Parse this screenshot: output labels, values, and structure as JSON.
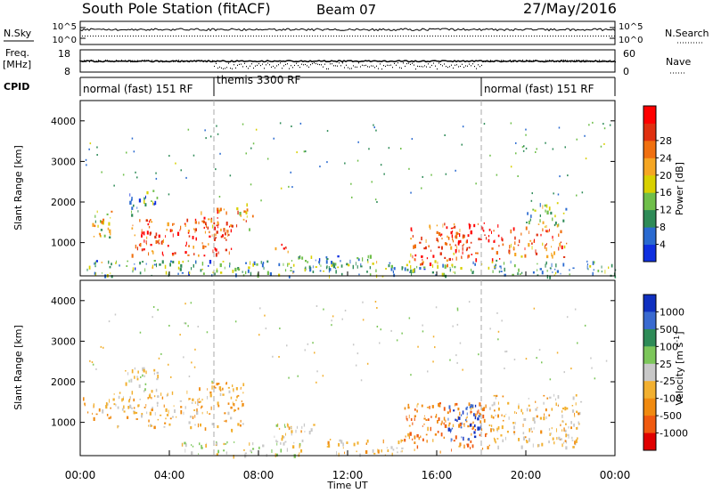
{
  "header": {
    "station": "South Pole Station (fitACF)",
    "beam": "Beam 07",
    "date": "27/May/2016"
  },
  "top_panels": {
    "nsky_label": "N.Sky",
    "nsearch_label": "N.Search",
    "noise_ticks": [
      "10^5",
      "10^0"
    ],
    "freq_label_line1": "Freq.",
    "freq_label_line2": "[MHz]",
    "freq_ticks": [
      "18",
      "8"
    ],
    "nave_label": "Nave",
    "nave_ticks": [
      "60",
      "0"
    ],
    "cpid_label": "CPID",
    "cpid_segments": [
      {
        "start_hour": 0,
        "end_hour": 6,
        "text": "normal (fast) 151 RF"
      },
      {
        "start_hour": 6,
        "end_hour": 18,
        "text": "themis 3300 RF"
      },
      {
        "start_hour": 18,
        "end_hour": 24,
        "text": "normal (fast) 151 RF"
      }
    ]
  },
  "time_axis": {
    "label": "Time UT",
    "ticks": [
      "00:00",
      "04:00",
      "08:00",
      "12:00",
      "16:00",
      "20:00",
      "00:00"
    ]
  },
  "colorbars": {
    "power": {
      "label": "Power [dB]",
      "ticks": [
        "4",
        "8",
        "12",
        "16",
        "20",
        "24",
        "28"
      ],
      "colors": [
        "#1030e0",
        "#2a6ad0",
        "#2e8b57",
        "#6fbf4a",
        "#d8d000",
        "#f5a623",
        "#f07010",
        "#e03010",
        "#ff0000"
      ]
    },
    "velocity": {
      "label": "Velocity [m s",
      "label_sup": "-1",
      "label_end": "]",
      "ticks": [
        "1000",
        "500",
        "100",
        "25",
        "-25",
        "-100",
        "-500",
        "-1000"
      ],
      "colors": [
        "#1030c0",
        "#3a6ad0",
        "#2e8b57",
        "#7cc65a",
        "#c8c8c8",
        "#f2b030",
        "#f08a10",
        "#f05a10",
        "#e00000"
      ]
    }
  },
  "chart_data": [
    {
      "type": "heatmap",
      "title": "Power",
      "xlabel": "Time UT",
      "ylabel": "Slant Range [km]",
      "xlim_hours": [
        0,
        24
      ],
      "ylim": [
        180,
        4500
      ],
      "yticks": [
        1000,
        2000,
        3000,
        4000
      ],
      "color_scale": [
        0,
        30
      ],
      "scatter_bands": [
        {
          "t0": 0.1,
          "t1": 1.4,
          "r0": 1150,
          "r1": 1800,
          "value": 16
        },
        {
          "t0": 2.2,
          "t1": 6.8,
          "r0": 700,
          "r1": 1600,
          "value": 24
        },
        {
          "t0": 2.2,
          "t1": 3.5,
          "r0": 1700,
          "r1": 2300,
          "value": 8
        },
        {
          "t0": 5.3,
          "t1": 6.8,
          "r0": 1100,
          "r1": 1900,
          "value": 22
        },
        {
          "t0": 7.0,
          "t1": 7.8,
          "r0": 1350,
          "r1": 2000,
          "value": 18
        },
        {
          "t0": 8.7,
          "t1": 9.5,
          "r0": 750,
          "r1": 1000,
          "value": 22
        },
        {
          "t0": 9.6,
          "t1": 13.0,
          "r0": 300,
          "r1": 700,
          "value": 8
        },
        {
          "t0": 14.8,
          "t1": 17.2,
          "r0": 450,
          "r1": 1500,
          "value": 22
        },
        {
          "t0": 16.6,
          "t1": 19.0,
          "r0": 600,
          "r1": 1500,
          "value": 27
        },
        {
          "t0": 19.2,
          "t1": 21.8,
          "r0": 650,
          "r1": 1400,
          "value": 22
        },
        {
          "t0": 20.0,
          "t1": 21.8,
          "r0": 1400,
          "r1": 2000,
          "value": 12
        },
        {
          "t0": 0.2,
          "t1": 24.0,
          "r0": 190,
          "r1": 580,
          "value": 10
        }
      ]
    },
    {
      "type": "heatmap",
      "title": "Velocity",
      "xlabel": "Time UT",
      "ylabel": "Slant Range [km]",
      "xlim_hours": [
        0,
        24
      ],
      "ylim": [
        180,
        4500
      ],
      "yticks": [
        1000,
        2000,
        3000,
        4000
      ],
      "color_scale": [
        -1000,
        1000
      ],
      "scatter_bands": [
        {
          "t0": 0.1,
          "t1": 1.5,
          "r0": 1100,
          "r1": 1650,
          "value": -300
        },
        {
          "t0": 1.5,
          "t1": 5.3,
          "r0": 900,
          "r1": 1800,
          "value": -200
        },
        {
          "t0": 5.3,
          "t1": 7.3,
          "r0": 800,
          "r1": 2000,
          "value": -300
        },
        {
          "t0": 2.0,
          "t1": 3.5,
          "r0": 1800,
          "r1": 2400,
          "value": -100
        },
        {
          "t0": 4.5,
          "t1": 10.0,
          "r0": 200,
          "r1": 550,
          "value": 5
        },
        {
          "t0": 8.5,
          "t1": 10.5,
          "r0": 500,
          "r1": 1000,
          "value": -100
        },
        {
          "t0": 11.0,
          "t1": 14.5,
          "r0": 200,
          "r1": 600,
          "value": -200
        },
        {
          "t0": 14.5,
          "t1": 18.2,
          "r0": 300,
          "r1": 1500,
          "value": -500
        },
        {
          "t0": 16.5,
          "t1": 18.0,
          "r0": 600,
          "r1": 1500,
          "value": 800
        },
        {
          "t0": 18.2,
          "t1": 22.5,
          "r0": 400,
          "r1": 1700,
          "value": -200
        }
      ]
    }
  ]
}
